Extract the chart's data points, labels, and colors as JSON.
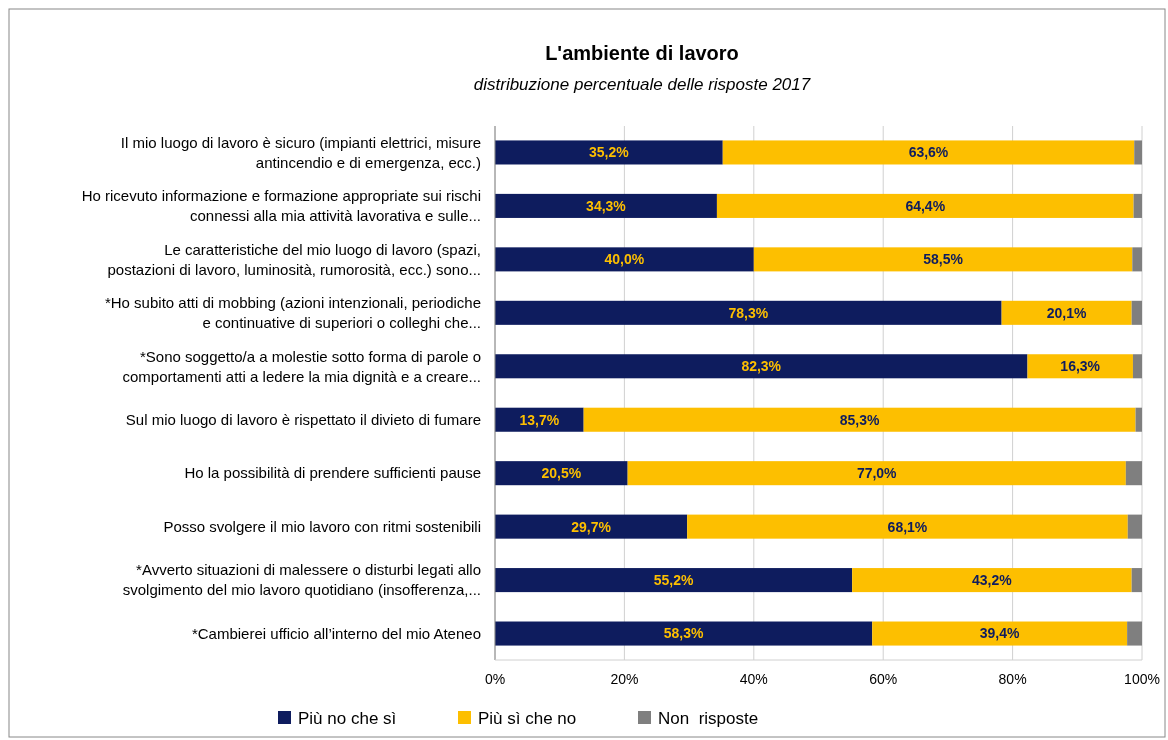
{
  "chart_data": {
    "type": "bar",
    "orientation": "horizontal",
    "stacked": true,
    "title": "L'ambiente di lavoro",
    "subtitle": "distribuzione percentuale delle risposte 2017",
    "categories": [
      "Il mio luogo di lavoro è sicuro (impianti elettrici, misure antincendio e di emergenza, ecc.)",
      "Ho ricevuto informazione e formazione appropriate sui rischi connessi alla mia attività lavorativa e sulle...",
      "Le caratteristiche del mio luogo di lavoro (spazi, postazioni di lavoro, luminosità, rumorosità, ecc.) sono...",
      "*Ho subito atti di mobbing (azioni intenzionali, periodiche e continuative di superiori o colleghi che...",
      "*Sono soggetto/a a molestie sotto forma di parole o comportamenti atti a ledere la mia dignità e a creare...",
      "Sul mio luogo di lavoro è rispettato il divieto di fumare",
      "Ho la possibilità di prendere sufficienti pause",
      "Posso svolgere il mio lavoro con ritmi sostenibili",
      "*Avverto situazioni di malessere o disturbi legati allo svolgimento del mio lavoro quotidiano (insofferenza,...",
      "*Cambierei ufficio all’interno del mio Ateneo"
    ],
    "series": [
      {
        "name": "Più no che sì",
        "color": "#0e1c5e",
        "values": [
          35.2,
          34.3,
          40.0,
          78.3,
          82.3,
          13.7,
          20.5,
          29.7,
          55.2,
          58.3
        ],
        "value_labels": [
          "35,2%",
          "34,3%",
          "40,0%",
          "78,3%",
          "82,3%",
          "13,7%",
          "20,5%",
          "29,7%",
          "55,2%",
          "58,3%"
        ]
      },
      {
        "name": "Più sì che no",
        "color": "#fdbf00",
        "values": [
          63.6,
          64.4,
          58.5,
          20.1,
          16.3,
          85.3,
          77.0,
          68.1,
          43.2,
          39.4
        ],
        "value_labels": [
          "63,6%",
          "64,4%",
          "58,5%",
          "20,1%",
          "16,3%",
          "85,3%",
          "77,0%",
          "68,1%",
          "43,2%",
          "39,4%"
        ]
      },
      {
        "name": "Non  risposte",
        "color": "#7f7f7f",
        "values": [
          1.2,
          1.3,
          1.5,
          1.6,
          1.4,
          1.0,
          2.5,
          2.2,
          1.6,
          2.3
        ]
      }
    ],
    "xlim": [
      0,
      100
    ],
    "xticks": [
      {
        "value": 0,
        "label": "0%"
      },
      {
        "value": 20,
        "label": "20%"
      },
      {
        "value": 40,
        "label": "40%"
      },
      {
        "value": 60,
        "label": "60%"
      },
      {
        "value": 80,
        "label": "80%"
      },
      {
        "value": 100,
        "label": "100%"
      }
    ],
    "grid": "x",
    "legend": "bottom"
  }
}
